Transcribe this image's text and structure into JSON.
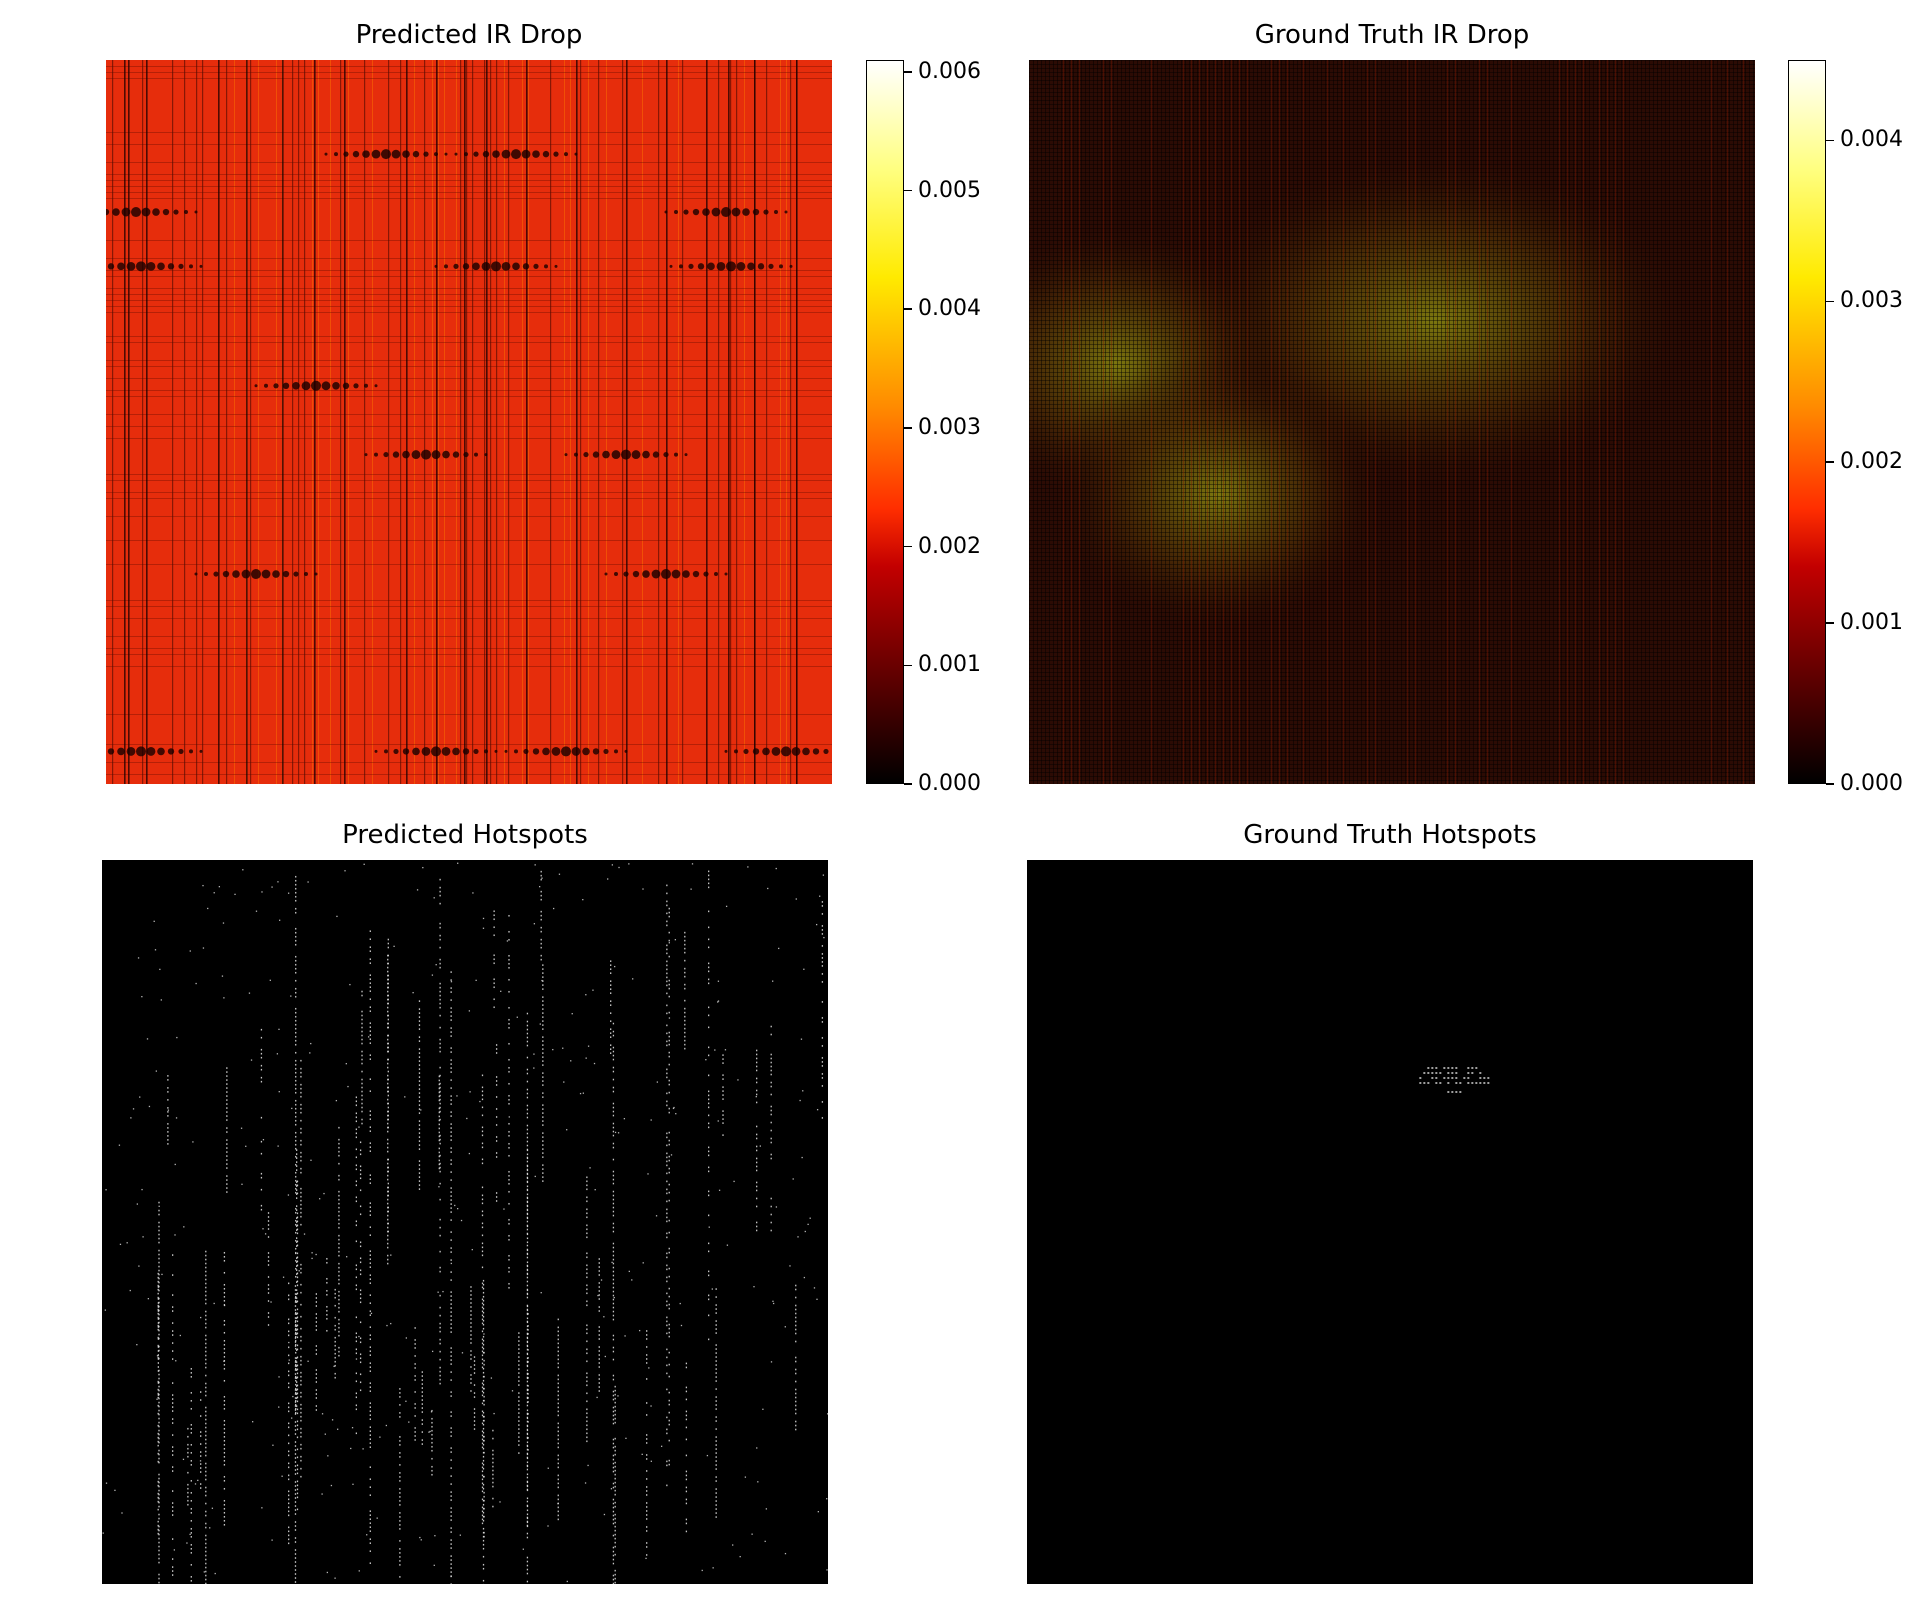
{
  "chart_data": [
    {
      "type": "heatmap",
      "title": "Predicted IR Drop",
      "colormap": "hot",
      "colorbar": {
        "min": 0.0,
        "max": 0.0061,
        "ticks": [
          "0.000",
          "0.001",
          "0.002",
          "0.003",
          "0.004",
          "0.005",
          "0.006"
        ],
        "tick_values": [
          0.0,
          0.001,
          0.002,
          0.003,
          0.004,
          0.005,
          0.006
        ]
      },
      "dominant_value": 0.0024,
      "note_pattern": "grid of vertical stripes with dark low-drop spots along horizontal rows",
      "low_spots_rows": [
        0.13,
        0.21,
        0.285,
        0.45,
        0.545,
        0.71,
        0.955
      ]
    },
    {
      "type": "heatmap",
      "title": "Ground Truth IR Drop",
      "colormap": "hot",
      "colorbar": {
        "min": 0.0,
        "max": 0.0045,
        "ticks": [
          "0.000",
          "0.001",
          "0.002",
          "0.003",
          "0.004"
        ],
        "tick_values": [
          0.0,
          0.001,
          0.002,
          0.003,
          0.004
        ]
      },
      "dominant_value": 0.0006,
      "high_regions": [
        {
          "cx": 0.56,
          "cy": 0.36,
          "peak": 0.0018
        },
        {
          "cx": 0.12,
          "cy": 0.42,
          "peak": 0.0014
        },
        {
          "cx": 0.26,
          "cy": 0.6,
          "peak": 0.0013
        }
      ]
    },
    {
      "type": "heatmap",
      "title": "Predicted Hotspots",
      "colormap": "binary",
      "values_present": [
        0,
        1
      ],
      "pattern": "sparse vertical dotted lines of hotspot pixels spread across the map"
    },
    {
      "type": "heatmap",
      "title": "Ground Truth Hotspots",
      "colormap": "binary",
      "values_present": [
        0,
        1
      ],
      "pattern": "single small cluster of hotspot pixels",
      "cluster": {
        "cx": 0.59,
        "cy": 0.3
      }
    }
  ]
}
